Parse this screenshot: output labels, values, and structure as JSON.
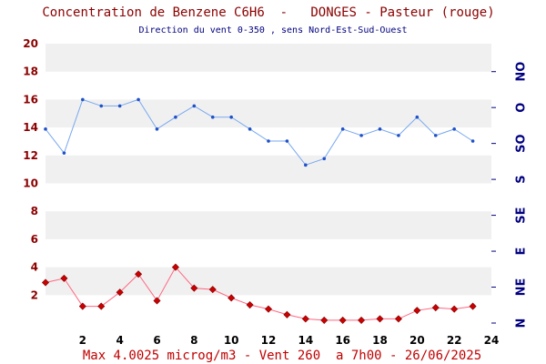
{
  "header": {
    "title": "Concentration de Benzene C6H6  -   DONGES - Pasteur (rouge)",
    "subtitle": "Direction du vent 0-350 , sens Nord-Est-Sud-Ouest"
  },
  "footer": {
    "text": "Max 4.0025 microg/m3 - Vent 260  a 7h00 - 26/06/2025"
  },
  "colors": {
    "benzene_series": "#cc0000",
    "benzene_line": "#ff6680",
    "wind_series": "#1e50c8",
    "wind_line": "#78a8f0",
    "band": "#f0f0f0",
    "title": "#8b0000",
    "footer": "#c00000",
    "direction_labels": "#000080"
  },
  "chart_data": {
    "type": "line",
    "title": "Concentration de Benzene C6H6  -   DONGES - Pasteur (rouge)",
    "subtitle": "Direction du vent 0-350 , sens Nord-Est-Sud-Ouest",
    "x_ticks": [
      "2",
      "4",
      "6",
      "8",
      "10",
      "12",
      "14",
      "16",
      "18",
      "20",
      "22",
      "24"
    ],
    "xlim": [
      0,
      24
    ],
    "y_ticks": [
      "2",
      "4",
      "6",
      "8",
      "10",
      "12",
      "14",
      "16",
      "18",
      "20"
    ],
    "ylim": [
      0,
      20
    ],
    "grid": "alternating horizontal bands",
    "right_axis": {
      "labels": [
        "N",
        "NE",
        "E",
        "SE",
        "S",
        "SO",
        "O",
        "NO"
      ],
      "degrees": [
        0,
        45,
        90,
        135,
        180,
        225,
        270,
        315
      ],
      "range": [
        0,
        350
      ]
    },
    "series": [
      {
        "key": "wind",
        "axis": "right",
        "marker": "dot",
        "x": [
          0,
          1,
          2,
          3,
          4,
          5,
          6,
          7,
          8,
          9,
          10,
          11,
          12,
          13,
          14,
          15,
          16,
          17,
          18,
          19,
          20,
          21,
          22,
          23
        ],
        "values": [
          243,
          213,
          280,
          272,
          272,
          280,
          243,
          258,
          272,
          258,
          258,
          243,
          228,
          228,
          198,
          206,
          243,
          235,
          243,
          235,
          258,
          235,
          243,
          228
        ]
      },
      {
        "key": "benzene",
        "axis": "left",
        "marker": "diamond",
        "x": [
          0,
          1,
          2,
          3,
          4,
          5,
          6,
          7,
          8,
          9,
          10,
          11,
          12,
          13,
          14,
          15,
          16,
          17,
          18,
          19,
          20,
          21,
          22,
          23
        ],
        "values": [
          2.9,
          3.2,
          1.2,
          1.2,
          2.2,
          3.5,
          1.6,
          4.0,
          2.5,
          2.4,
          1.8,
          1.3,
          1.0,
          0.6,
          0.3,
          0.2,
          0.2,
          0.2,
          0.3,
          0.3,
          0.9,
          1.1,
          1.0,
          1.2
        ]
      }
    ]
  }
}
